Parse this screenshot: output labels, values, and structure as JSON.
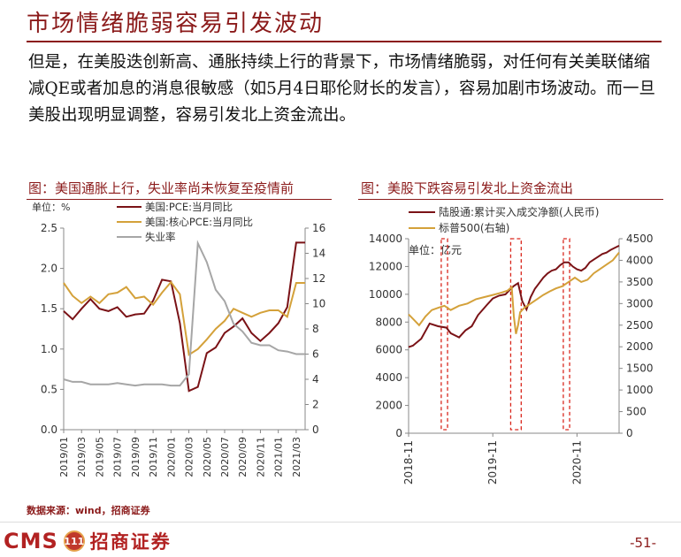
{
  "page": {
    "title": "市场情绪脆弱容易引发波动",
    "paragraph": "但是，在美股迭创新高、通胀持续上行的背景下，市场情绪脆弱，对任何有关美联储缩减QE或者加息的消息很敏感（如5月4日耶伦财长的发言），容易加剧市场波动。而一旦美股出现明显调整，容易引发北上资金流出。",
    "source": "数据来源：wind，招商证券",
    "page_number": "-51-",
    "logo": {
      "cms": "CMS",
      "badge": "111",
      "cn": "招商证券"
    }
  },
  "colors": {
    "brand": "#8b1a1a",
    "series_dark": "#7a1216",
    "series_gold": "#d4a13a",
    "series_gray": "#a6a6a6",
    "highlight": "#d9261c"
  },
  "chart_data": [
    {
      "type": "line",
      "title": "图：美国通胀上行，失业率尚未恢复至疫情前",
      "unit_label": "单位：%",
      "x": [
        "2019/01",
        "2019/02",
        "2019/03",
        "2019/04",
        "2019/05",
        "2019/06",
        "2019/07",
        "2019/08",
        "2019/09",
        "2019/10",
        "2019/11",
        "2019/12",
        "2020/01",
        "2020/02",
        "2020/03",
        "2020/04",
        "2020/05",
        "2020/06",
        "2020/07",
        "2020/08",
        "2020/09",
        "2020/10",
        "2020/11",
        "2020/12",
        "2021/01",
        "2021/02",
        "2021/03",
        "2021/04"
      ],
      "xtick_labels": [
        "2019/01",
        "2019/03",
        "2019/05",
        "2019/07",
        "2019/09",
        "2019/11",
        "2020/01",
        "2020/03",
        "2020/05",
        "2020/07",
        "2020/09",
        "2020/11",
        "2021/01",
        "2021/03"
      ],
      "left_ylim": [
        0,
        2.5
      ],
      "left_ticks": [
        "0.0",
        "0.5",
        "1.0",
        "1.5",
        "2.0",
        "2.5"
      ],
      "right_ylim": [
        0,
        16
      ],
      "right_ticks": [
        "0",
        "2",
        "4",
        "6",
        "8",
        "10",
        "12",
        "14",
        "16"
      ],
      "series": [
        {
          "name": "美国:PCE:当月同比",
          "axis": "left",
          "color": "#7a1216",
          "values": [
            1.47,
            1.37,
            1.5,
            1.62,
            1.5,
            1.47,
            1.52,
            1.4,
            1.43,
            1.44,
            1.6,
            1.86,
            1.84,
            1.32,
            0.48,
            0.53,
            0.95,
            1.02,
            1.2,
            1.28,
            1.38,
            1.2,
            1.1,
            1.2,
            1.32,
            1.52,
            2.32,
            2.32
          ]
        },
        {
          "name": "美国:核心PCE:当月同比",
          "axis": "left",
          "color": "#d4a13a",
          "values": [
            1.82,
            1.66,
            1.57,
            1.65,
            1.57,
            1.68,
            1.7,
            1.77,
            1.63,
            1.65,
            1.55,
            1.7,
            1.83,
            1.68,
            0.93,
            1.0,
            1.12,
            1.25,
            1.35,
            1.5,
            1.45,
            1.4,
            1.45,
            1.48,
            1.48,
            1.4,
            1.82,
            1.82
          ]
        },
        {
          "name": "失业率",
          "axis": "right",
          "color": "#a6a6a6",
          "values": [
            4.0,
            3.8,
            3.8,
            3.6,
            3.6,
            3.6,
            3.7,
            3.6,
            3.5,
            3.6,
            3.6,
            3.6,
            3.5,
            3.5,
            4.4,
            14.8,
            13.3,
            11.1,
            10.2,
            8.4,
            7.8,
            6.9,
            6.7,
            6.7,
            6.3,
            6.2,
            6.0,
            6.0
          ]
        }
      ]
    },
    {
      "type": "line",
      "title": "图：美股下跌容易引发北上资金流出",
      "unit_label": "单位：亿元",
      "xtick_labels": [
        "2018-11",
        "2019-11",
        "2020-11"
      ],
      "left_ylim": [
        0,
        14000
      ],
      "left_ticks": [
        "0",
        "2000",
        "4000",
        "6000",
        "8000",
        "10000",
        "12000",
        "14000"
      ],
      "right_ylim": [
        0,
        4500
      ],
      "right_ticks": [
        "0",
        "500",
        "1000",
        "1500",
        "2000",
        "2500",
        "3000",
        "3500",
        "4000",
        "4500"
      ],
      "x_range": [
        "2018-11",
        "2021-05"
      ],
      "series": [
        {
          "name": "陆股通:累计买入成交净额(人民币)",
          "axis": "left",
          "color": "#7a1216",
          "x": [
            0.0,
            0.02,
            0.06,
            0.1,
            0.14,
            0.18,
            0.2,
            0.24,
            0.27,
            0.3,
            0.33,
            0.37,
            0.4,
            0.43,
            0.46,
            0.48,
            0.5,
            0.52,
            0.54,
            0.56,
            0.58,
            0.6,
            0.62,
            0.64,
            0.66,
            0.68,
            0.7,
            0.72,
            0.74,
            0.76,
            0.78,
            0.8,
            0.82,
            0.84,
            0.86,
            0.88,
            0.9,
            0.92,
            0.94,
            0.96,
            1.0
          ],
          "values": [
            6200,
            6300,
            6800,
            7900,
            7700,
            7600,
            7200,
            6900,
            7400,
            7700,
            8500,
            9200,
            9700,
            9900,
            10000,
            10300,
            10600,
            10800,
            9500,
            8900,
            9800,
            10400,
            10800,
            11200,
            11500,
            11700,
            11800,
            12100,
            12300,
            12300,
            12000,
            11800,
            11700,
            11900,
            12300,
            12500,
            12700,
            12900,
            13000,
            13200,
            13500
          ]
        },
        {
          "name": "标普500(右轴)",
          "axis": "right",
          "color": "#d4a13a",
          "x": [
            0.0,
            0.02,
            0.05,
            0.08,
            0.11,
            0.14,
            0.17,
            0.2,
            0.24,
            0.28,
            0.32,
            0.36,
            0.4,
            0.44,
            0.47,
            0.49,
            0.5,
            0.51,
            0.52,
            0.53,
            0.55,
            0.58,
            0.61,
            0.64,
            0.67,
            0.7,
            0.73,
            0.76,
            0.79,
            0.82,
            0.85,
            0.88,
            0.91,
            0.94,
            0.97,
            1.0
          ],
          "values": [
            2750,
            2650,
            2500,
            2700,
            2850,
            2900,
            2950,
            2850,
            2950,
            3000,
            3100,
            3150,
            3200,
            3250,
            3300,
            3380,
            2700,
            2300,
            2500,
            2800,
            2900,
            3000,
            3100,
            3200,
            3280,
            3350,
            3400,
            3500,
            3600,
            3500,
            3550,
            3700,
            3800,
            3900,
            4000,
            4180
          ]
        }
      ],
      "highlight_periods": [
        {
          "start": 0.155,
          "end": 0.185
        },
        {
          "start": 0.485,
          "end": 0.535
        },
        {
          "start": 0.735,
          "end": 0.765
        }
      ]
    }
  ]
}
